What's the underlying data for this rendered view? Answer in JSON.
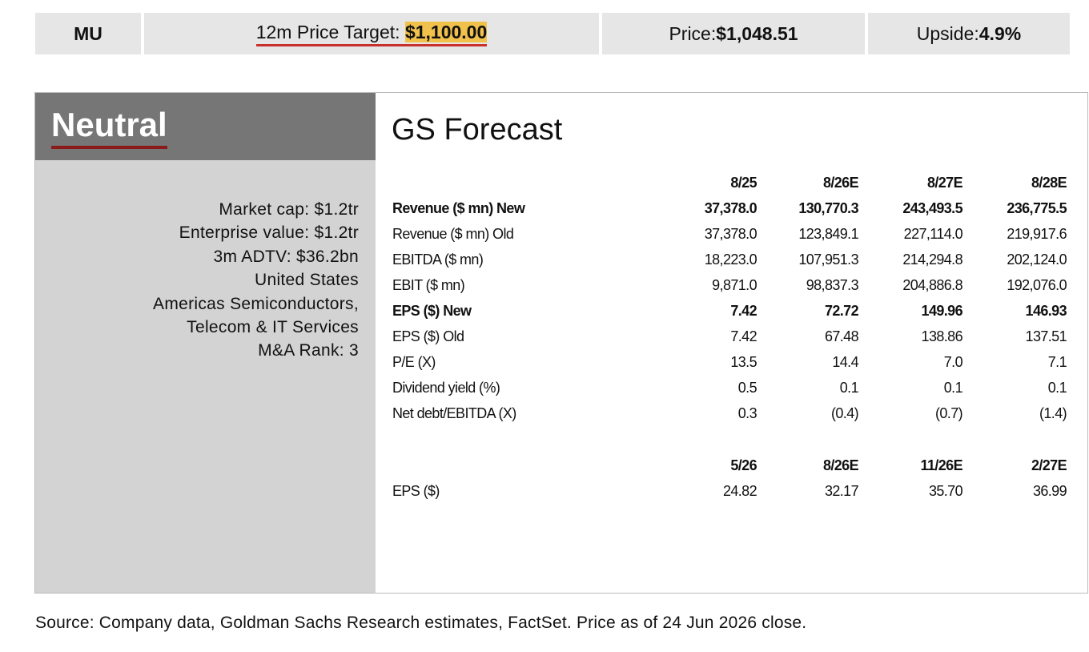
{
  "top_bar": {
    "ticker": "MU",
    "price_target": {
      "label": "12m Price Target:",
      "value": "$1,100.00"
    },
    "price": {
      "label": "Price:",
      "value": "$1,048.51"
    },
    "upside": {
      "label": "Upside:",
      "value": "4.9%"
    }
  },
  "rating": "Neutral",
  "details": [
    "Market cap: $1.2tr",
    "Enterprise value: $1.2tr",
    "3m ADTV: $36.2bn",
    "United States",
    "Americas Semiconductors,",
    "Telecom & IT Services",
    "M&A Rank: 3"
  ],
  "forecast": {
    "title": "GS Forecast",
    "annual": {
      "columns": [
        "8/25",
        "8/26E",
        "8/27E",
        "8/28E"
      ],
      "rows": [
        {
          "label": "Revenue ($ mn) New",
          "bold": true,
          "values": [
            "37,378.0",
            "130,770.3",
            "243,493.5",
            "236,775.5"
          ]
        },
        {
          "label": "Revenue ($ mn) Old",
          "bold": false,
          "values": [
            "37,378.0",
            "123,849.1",
            "227,114.0",
            "219,917.6"
          ]
        },
        {
          "label": "EBITDA ($ mn)",
          "bold": false,
          "values": [
            "18,223.0",
            "107,951.3",
            "214,294.8",
            "202,124.0"
          ]
        },
        {
          "label": "EBIT ($ mn)",
          "bold": false,
          "values": [
            "9,871.0",
            "98,837.3",
            "204,886.8",
            "192,076.0"
          ]
        },
        {
          "label": "EPS ($) New",
          "bold": true,
          "values": [
            "7.42",
            "72.72",
            "149.96",
            "146.93"
          ]
        },
        {
          "label": "EPS ($) Old",
          "bold": false,
          "values": [
            "7.42",
            "67.48",
            "138.86",
            "137.51"
          ]
        },
        {
          "label": "P/E (X)",
          "bold": false,
          "values": [
            "13.5",
            "14.4",
            "7.0",
            "7.1"
          ]
        },
        {
          "label": "Dividend yield (%)",
          "bold": false,
          "values": [
            "0.5",
            "0.1",
            "0.1",
            "0.1"
          ]
        },
        {
          "label": "Net debt/EBITDA (X)",
          "bold": false,
          "values": [
            "0.3",
            "(0.4)",
            "(0.7)",
            "(1.4)"
          ]
        }
      ]
    },
    "quarterly": {
      "columns": [
        "5/26",
        "8/26E",
        "11/26E",
        "2/27E"
      ],
      "rows": [
        {
          "label": "EPS ($)",
          "bold": false,
          "values": [
            "24.82",
            "32.17",
            "35.70",
            "36.99"
          ]
        }
      ]
    }
  },
  "source": "Source: Company data, Goldman Sachs Research estimates, FactSet. Price as of 24 Jun 2026 close."
}
